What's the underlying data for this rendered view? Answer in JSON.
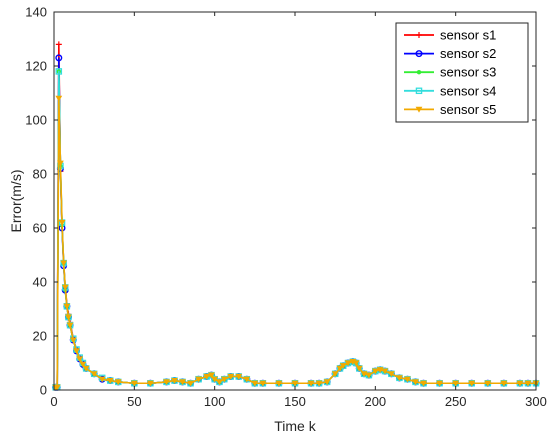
{
  "chart_data": {
    "type": "line",
    "title": "",
    "xlabel": "Time k",
    "ylabel": "Error(m/s)",
    "xlim": [
      0,
      300
    ],
    "ylim": [
      0,
      140
    ],
    "xticks": [
      0,
      50,
      100,
      150,
      200,
      250,
      300
    ],
    "yticks": [
      0,
      20,
      40,
      60,
      80,
      100,
      120,
      140
    ],
    "grid": false,
    "legend_position": "top-right",
    "series": [
      {
        "name": "sensor s1",
        "color": "#ff0000",
        "marker": "plus",
        "x": [
          1,
          2,
          3,
          4,
          5,
          6,
          7,
          8,
          9,
          10,
          12,
          14,
          16,
          18,
          20,
          25,
          30,
          35,
          40,
          50,
          60,
          70,
          75,
          80,
          85,
          90,
          95,
          98,
          100,
          103,
          106,
          110,
          115,
          120,
          125,
          130,
          140,
          150,
          160,
          165,
          170,
          175,
          178,
          180,
          183,
          186,
          188,
          190,
          193,
          196,
          200,
          203,
          206,
          210,
          215,
          220,
          225,
          230,
          240,
          250,
          260,
          270,
          280,
          290,
          295,
          300
        ],
        "y": [
          1,
          1,
          128,
          81,
          61,
          47,
          38,
          32,
          28,
          25,
          19,
          15,
          12,
          10,
          8,
          6,
          4,
          3.5,
          3,
          2.5,
          2.5,
          3,
          3.5,
          3,
          2.5,
          4,
          5,
          5.5,
          4,
          3,
          4,
          5,
          5,
          4,
          2.5,
          2.5,
          2.5,
          2.5,
          2.5,
          2.5,
          3,
          6,
          8,
          9,
          10,
          10.5,
          10,
          8,
          6,
          5.5,
          7,
          7.5,
          7,
          6,
          4.5,
          4,
          3,
          2.5,
          2.5,
          2.5,
          2.5,
          2.5,
          2.5,
          2.5,
          2.5,
          2.5
        ]
      },
      {
        "name": "sensor s2",
        "color": "#0000ff",
        "marker": "circle",
        "x": [
          1,
          2,
          3,
          4,
          5,
          6,
          7,
          8,
          9,
          10,
          12,
          14,
          16,
          18,
          20,
          25,
          30,
          35,
          40,
          50,
          60,
          70,
          75,
          80,
          85,
          90,
          95,
          98,
          100,
          103,
          106,
          110,
          115,
          120,
          125,
          130,
          140,
          150,
          160,
          165,
          170,
          175,
          178,
          180,
          183,
          186,
          188,
          190,
          193,
          196,
          200,
          203,
          206,
          210,
          215,
          220,
          225,
          230,
          240,
          250,
          260,
          270,
          280,
          290,
          295,
          300
        ],
        "y": [
          1,
          1,
          123,
          82,
          60,
          46,
          37,
          31,
          27,
          24,
          18.5,
          14.5,
          11.5,
          9.5,
          8,
          6,
          4,
          3.5,
          3,
          2.5,
          2.5,
          3,
          3.5,
          3,
          2.5,
          4,
          5,
          5.5,
          4,
          3,
          4,
          5,
          5,
          4,
          2.5,
          2.5,
          2.5,
          2.5,
          2.5,
          2.5,
          3,
          6,
          8,
          9,
          10,
          10.5,
          10,
          8,
          6,
          5.5,
          7,
          7.5,
          7,
          6,
          4.5,
          4,
          3,
          2.5,
          2.5,
          2.5,
          2.5,
          2.5,
          2.5,
          2.5,
          2.5,
          2.5
        ]
      },
      {
        "name": "sensor s3",
        "color": "#33ee33",
        "marker": "dot",
        "x": [
          1,
          2,
          3,
          4,
          5,
          6,
          7,
          8,
          9,
          10,
          12,
          14,
          16,
          18,
          20,
          25,
          30,
          35,
          40,
          50,
          60,
          70,
          75,
          80,
          85,
          90,
          95,
          98,
          100,
          103,
          106,
          110,
          115,
          120,
          125,
          130,
          140,
          150,
          160,
          165,
          170,
          175,
          178,
          180,
          183,
          186,
          188,
          190,
          193,
          196,
          200,
          203,
          206,
          210,
          215,
          220,
          225,
          230,
          240,
          250,
          260,
          270,
          280,
          290,
          295,
          300
        ],
        "y": [
          1,
          1,
          118,
          83,
          61,
          47,
          37,
          31,
          27,
          24,
          18.5,
          14.5,
          11.5,
          9.5,
          8,
          6,
          4,
          3.5,
          3,
          2.5,
          2.5,
          3,
          3.5,
          3,
          2.5,
          4,
          5,
          5.5,
          4,
          3,
          4,
          5,
          5,
          4,
          2.5,
          2.5,
          2.5,
          2.5,
          2.5,
          2.5,
          3,
          6,
          8,
          9,
          10,
          10.5,
          10,
          8,
          6,
          5.5,
          7,
          7.5,
          7,
          6,
          4.5,
          4,
          3,
          2.5,
          2.5,
          2.5,
          2.5,
          2.5,
          2.5,
          2.5,
          2.5,
          2.5
        ]
      },
      {
        "name": "sensor s4",
        "color": "#33dddd",
        "marker": "square",
        "x": [
          1,
          2,
          3,
          4,
          5,
          6,
          7,
          8,
          9,
          10,
          12,
          14,
          16,
          18,
          20,
          25,
          30,
          35,
          40,
          50,
          60,
          70,
          75,
          80,
          85,
          90,
          95,
          98,
          100,
          103,
          106,
          110,
          115,
          120,
          125,
          130,
          140,
          150,
          160,
          165,
          170,
          175,
          178,
          180,
          183,
          186,
          188,
          190,
          193,
          196,
          200,
          203,
          206,
          210,
          215,
          220,
          225,
          230,
          240,
          250,
          260,
          270,
          280,
          290,
          295,
          300
        ],
        "y": [
          1,
          1,
          118,
          83,
          62,
          47,
          38,
          31,
          27,
          24,
          19,
          15,
          12,
          10,
          8,
          6,
          4.5,
          3.5,
          3,
          2.5,
          2.5,
          3,
          3.5,
          3,
          2.5,
          4,
          5,
          5.5,
          4,
          3,
          4,
          5,
          5,
          4,
          2.5,
          2.5,
          2.5,
          2.5,
          2.5,
          2.5,
          3,
          6,
          8,
          9,
          10,
          10.5,
          10,
          8,
          6,
          5.5,
          7,
          7.5,
          7,
          6,
          4.5,
          4,
          3,
          2.5,
          2.5,
          2.5,
          2.5,
          2.5,
          2.5,
          2.5,
          2.5,
          2.5
        ]
      },
      {
        "name": "sensor s5",
        "color": "#f2a900",
        "marker": "triangle-down",
        "x": [
          1,
          2,
          3,
          4,
          5,
          6,
          7,
          8,
          9,
          10,
          12,
          14,
          16,
          18,
          20,
          25,
          30,
          35,
          40,
          50,
          60,
          70,
          75,
          80,
          85,
          90,
          95,
          98,
          100,
          103,
          106,
          110,
          115,
          120,
          125,
          130,
          140,
          150,
          160,
          165,
          170,
          175,
          178,
          180,
          183,
          186,
          188,
          190,
          193,
          196,
          200,
          203,
          206,
          210,
          215,
          220,
          225,
          230,
          240,
          250,
          260,
          270,
          280,
          290,
          295,
          300
        ],
        "y": [
          1,
          1,
          108,
          84,
          62,
          47,
          38,
          31,
          27,
          24,
          18.5,
          14.5,
          11.5,
          9.5,
          8,
          6,
          4,
          3.5,
          3,
          2.5,
          2.5,
          3,
          3.5,
          3,
          2.5,
          4,
          5,
          5.5,
          4,
          3,
          4,
          5,
          5,
          4,
          2.5,
          2.5,
          2.5,
          2.5,
          2.5,
          2.5,
          3,
          6,
          8,
          9,
          10,
          10.5,
          10,
          8,
          6,
          5.5,
          7,
          7.5,
          7,
          6,
          4.5,
          4,
          3,
          2.5,
          2.5,
          2.5,
          2.5,
          2.5,
          2.5,
          2.5,
          2.5,
          2.5
        ]
      }
    ]
  }
}
